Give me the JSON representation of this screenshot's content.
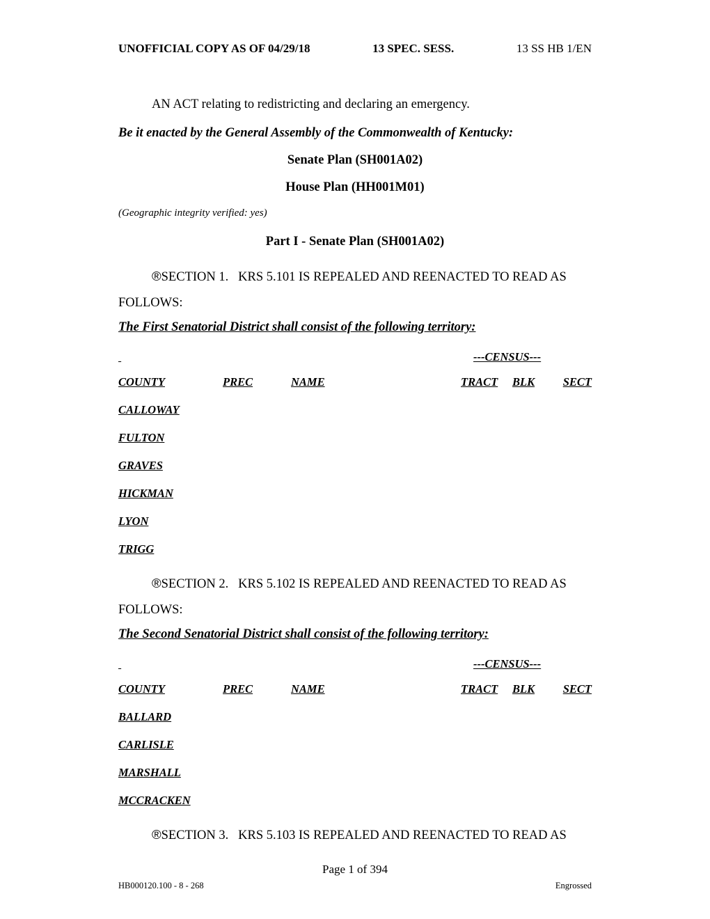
{
  "header": {
    "left": "UNOFFICIAL COPY AS OF 04/29/18",
    "mid": "13 SPEC. SESS.",
    "right": "13 SS HB 1/EN"
  },
  "act_title": "AN ACT relating to redistricting and declaring an emergency.",
  "enacted": "Be it enacted by the General Assembly of the Commonwealth of Kentucky:",
  "senate_plan": "Senate Plan (SH001A02)",
  "house_plan": "House Plan (HH001M01)",
  "geo_verified": "(Geographic integrity verified: yes)",
  "part_title": "Part I - Senate Plan (SH001A02)",
  "section_symbol": "®",
  "section1": {
    "label": "SECTION 1.",
    "body_a": "KRS 5.101 IS REPEALED AND REENACTED TO READ AS",
    "body_b": "FOLLOWS:"
  },
  "district1_line": "The First Senatorial District shall consist of the following territory:",
  "census_label": "---CENSUS---",
  "cols": {
    "county": "COUNTY",
    "prec": "PREC",
    "name": "NAME",
    "tract": "TRACT",
    "blk": "BLK",
    "sect": "SECT"
  },
  "district1_counties": [
    "CALLOWAY",
    "FULTON",
    "GRAVES",
    "HICKMAN",
    "LYON",
    "TRIGG"
  ],
  "section2": {
    "label": "SECTION 2.",
    "body_a": "KRS 5.102 IS REPEALED AND REENACTED TO READ AS",
    "body_b": "FOLLOWS:"
  },
  "district2_line": "The Second Senatorial District shall consist of the following territory:",
  "district2_counties": [
    "BALLARD",
    "CARLISLE",
    "MARSHALL",
    "MCCRACKEN"
  ],
  "section3": {
    "label": "SECTION 3.",
    "body_a": "KRS 5.103 IS REPEALED AND REENACTED TO READ AS"
  },
  "footer": {
    "page": "Page 1 of 394",
    "left": "HB000120.100 - 8 - 268",
    "right": "Engrossed"
  }
}
